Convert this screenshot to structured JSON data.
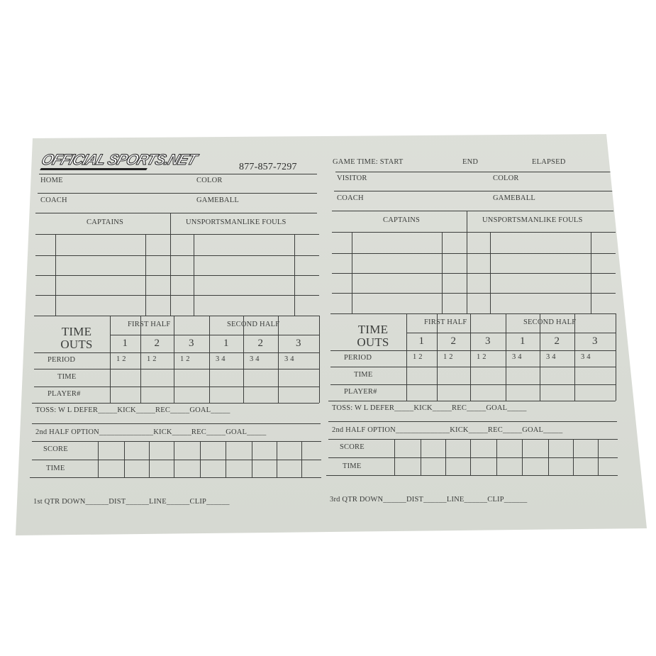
{
  "card": {
    "left": {
      "logo": "OFFICIAL SPORTS.NET",
      "phone": "877-857-7297",
      "team_label": "HOME",
      "color_label": "COLOR",
      "coach_label": "COACH",
      "gameball_label": "GAMEBALL",
      "captains_label": "CAPTAINS",
      "fouls_label": "UNSPORTSMANLIKE FOULS",
      "timeouts_label": "TIME OUTS",
      "first_half": "FIRST HALF",
      "second_half": "SECOND HALF",
      "timeout_numbers": [
        "1",
        "2",
        "3",
        "1",
        "2",
        "3"
      ],
      "periods": [
        "1 2",
        "1 2",
        "1 2",
        "3 4",
        "3 4",
        "3 4"
      ],
      "period_label": "PERIOD",
      "time_label": "TIME",
      "player_label": "PLAYER#",
      "toss_line": "TOSS:   W   L      DEFER_____KICK_____REC_____GOAL_____",
      "option_line": "2nd HALF OPTION______________KICK_____REC_____GOAL_____",
      "score_label": "SCORE",
      "score_time_label": "TIME",
      "qtr_line": "1st QTR DOWN______DIST______LINE______CLIP______"
    },
    "right": {
      "game_time_start": "GAME TIME: START",
      "game_time_end": "END",
      "game_time_elapsed": "ELAPSED",
      "team_label": "VISITOR",
      "color_label": "COLOR",
      "coach_label": "COACH",
      "gameball_label": "GAMEBALL",
      "captains_label": "CAPTAINS",
      "fouls_label": "UNSPORTSMANLIKE FOULS",
      "timeouts_label": "TIME OUTS",
      "first_half": "FIRST HALF",
      "second_half": "SECOND HALF",
      "timeout_numbers": [
        "1",
        "2",
        "3",
        "1",
        "2",
        "3"
      ],
      "periods": [
        "1 2",
        "1 2",
        "1 2",
        "3 4",
        "3 4",
        "3 4"
      ],
      "period_label": "PERIOD",
      "time_label": "TIME",
      "player_label": "PLAYER#",
      "toss_line": "TOSS:   W   L      DEFER_____KICK_____REC_____GOAL_____",
      "option_line": "2nd HALF OPTION______________KICK_____REC_____GOAL_____",
      "score_label": "SCORE",
      "score_time_label": "TIME",
      "qtr_line": "3rd QTR DOWN______DIST______LINE______CLIP______"
    }
  }
}
